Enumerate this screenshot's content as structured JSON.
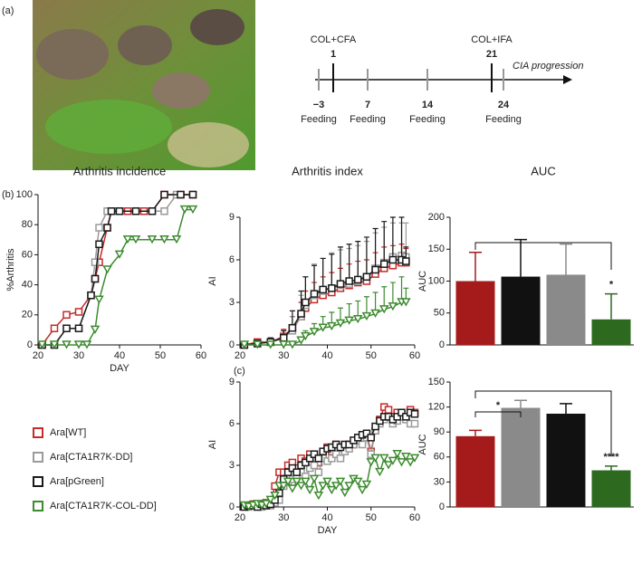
{
  "panels": [
    "(a)",
    "(b)",
    "(c)"
  ],
  "timeline": {
    "events": [
      {
        "day": "1",
        "label": "COL+CFA"
      },
      {
        "day": "21",
        "label": "COL+IFA"
      }
    ],
    "feedings": [
      {
        "day": "−3",
        "label": "Feeding"
      },
      {
        "day": "7",
        "label": "Feeding"
      },
      {
        "day": "14",
        "label": "Feeding"
      },
      {
        "day": "24",
        "label": "Feeding"
      }
    ],
    "arrow_label": "CIA progression"
  },
  "chart_data": [
    {
      "type": "line",
      "title": "Arthritis incidence",
      "x_label": "DAY",
      "y_label": "%Arthritis",
      "xlim": [
        20,
        60
      ],
      "xticks": [
        20,
        30,
        40,
        50,
        60
      ],
      "ylim": [
        0,
        100
      ],
      "yticks": [
        0,
        20,
        40,
        60,
        80,
        100
      ],
      "series": [
        {
          "name": "Ara[WT]",
          "color": "#c62a2a",
          "marker": "square",
          "x": [
            21,
            24,
            27,
            30,
            33,
            34,
            35,
            37,
            38,
            40,
            42,
            44,
            46,
            48,
            51,
            55,
            58
          ],
          "values": [
            0,
            11,
            20,
            22,
            33,
            44,
            55,
            78,
            89,
            89,
            89,
            89,
            89,
            89,
            100,
            100,
            100
          ]
        },
        {
          "name": "Ara[CTA1R7K-DD]",
          "color": "#9a9a9a",
          "marker": "square",
          "x": [
            21,
            24,
            27,
            30,
            33,
            34,
            35,
            37,
            40,
            44,
            48,
            51,
            54,
            58
          ],
          "values": [
            0,
            0,
            11,
            11,
            33,
            55,
            78,
            89,
            89,
            89,
            89,
            89,
            100,
            100
          ]
        },
        {
          "name": "Ara[pGreen]",
          "color": "#1a1a1a",
          "marker": "square",
          "x": [
            21,
            24,
            27,
            30,
            33,
            34,
            35,
            37,
            38,
            40,
            44,
            48,
            51,
            55,
            58
          ],
          "values": [
            0,
            0,
            11,
            11,
            33,
            44,
            67,
            78,
            89,
            89,
            89,
            89,
            100,
            100,
            100
          ]
        },
        {
          "name": "Ara[CTA1R7K-COL-DD]",
          "color": "#3d8b2f",
          "marker": "triangle",
          "x": [
            21,
            24,
            27,
            30,
            32,
            34,
            35,
            37,
            40,
            42,
            44,
            48,
            51,
            54,
            56,
            58
          ],
          "values": [
            0,
            0,
            0,
            0,
            0,
            10,
            30,
            50,
            60,
            70,
            70,
            70,
            70,
            70,
            90,
            90
          ]
        }
      ]
    },
    {
      "type": "line",
      "title": "Arthritis index",
      "y_label": "AI",
      "xlim": [
        20,
        60
      ],
      "xticks": [
        20,
        30,
        40,
        50,
        60
      ],
      "ylim": [
        0,
        9
      ],
      "yticks": [
        0,
        3,
        6,
        9
      ],
      "x": [
        21,
        24,
        27,
        30,
        32,
        34,
        35,
        37,
        39,
        41,
        43,
        45,
        47,
        49,
        51,
        53,
        55,
        57,
        58
      ],
      "series": [
        {
          "color": "#c62a2a",
          "marker": "square",
          "values": [
            0,
            0.2,
            0.2,
            0.6,
            1.2,
            2,
            2.6,
            3.2,
            3.5,
            3.7,
            4,
            4.2,
            4.4,
            4.5,
            5,
            5.4,
            5.6,
            5.8,
            5.8
          ],
          "errors": [
            0,
            0.2,
            0.3,
            0.5,
            0.8,
            1,
            1.2,
            1.2,
            1.3,
            1.4,
            1.4,
            1.5,
            1.5,
            1.5,
            1.5,
            1.5,
            1.4,
            1.3,
            1
          ]
        },
        {
          "color": "#9a9a9a",
          "marker": "square",
          "values": [
            0,
            0.1,
            0.2,
            0.5,
            1,
            2,
            2.8,
            3.5,
            3.8,
            4,
            4.2,
            4.3,
            4.5,
            4.8,
            5.4,
            5.8,
            6.2,
            6.3,
            6.2
          ],
          "errors": [
            0,
            0.2,
            0.3,
            0.5,
            1,
            1.5,
            2,
            2.2,
            2.3,
            2.5,
            2.5,
            2.5,
            2.5,
            2.5,
            2.5,
            2.5,
            2.4,
            2.3,
            2.4
          ]
        },
        {
          "color": "#1a1a1a",
          "marker": "square",
          "values": [
            0,
            0.1,
            0.2,
            0.5,
            1.2,
            2.2,
            3,
            3.6,
            3.9,
            4,
            4.3,
            4.5,
            4.6,
            4.8,
            5.3,
            5.7,
            6,
            6,
            5.9
          ],
          "errors": [
            0,
            0.2,
            0.3,
            0.5,
            1.2,
            1.6,
            1.8,
            2,
            2.2,
            2.4,
            2.6,
            2.6,
            2.7,
            2.8,
            2.9,
            3,
            3,
            3,
            1
          ]
        },
        {
          "color": "#3d8b2f",
          "marker": "triangle",
          "values": [
            0,
            0,
            0,
            0,
            0,
            0.3,
            0.6,
            0.9,
            1.2,
            1.3,
            1.5,
            1.7,
            1.8,
            2,
            2.2,
            2.5,
            2.7,
            3,
            3
          ],
          "errors": [
            0,
            0,
            0,
            0,
            0,
            0.2,
            0.4,
            0.6,
            0.8,
            1,
            1.1,
            1.2,
            1.3,
            1.4,
            1.5,
            1.6,
            1.7,
            1.8,
            1
          ]
        }
      ]
    },
    {
      "type": "bar",
      "title": "AUC",
      "y_label": "AUC",
      "ylim": [
        0,
        200
      ],
      "yticks": [
        0,
        50,
        100,
        150,
        200
      ],
      "categories": [
        null,
        null,
        null,
        null
      ],
      "values": [
        100,
        107,
        110,
        40
      ],
      "errors": [
        45,
        58,
        48,
        40
      ],
      "colors": [
        "#a51b1b",
        "#111111",
        "#8a8a8a",
        "#2d6a1f"
      ],
      "annotations": [
        "*"
      ]
    },
    {
      "type": "line",
      "x_label": "DAY",
      "y_label": "AI",
      "xlim": [
        20,
        60
      ],
      "xticks": [
        20,
        30,
        40,
        50,
        60
      ],
      "ylim": [
        0,
        9
      ],
      "yticks": [
        0,
        3,
        6,
        9
      ],
      "x": [
        21,
        22,
        23,
        24,
        25,
        26,
        27,
        28,
        29,
        30,
        31,
        32,
        33,
        34,
        35,
        36,
        37,
        38,
        39,
        40,
        41,
        42,
        43,
        44,
        45,
        46,
        47,
        48,
        49,
        50,
        51,
        52,
        53,
        54,
        55,
        56,
        57,
        58,
        59,
        60
      ],
      "series": [
        {
          "color": "#c62a2a",
          "marker": "square",
          "values": [
            0.1,
            0.1,
            0.2,
            0.2,
            0.1,
            0.3,
            0.2,
            1.5,
            2.5,
            2.5,
            3,
            3.2,
            2.8,
            3.5,
            3.3,
            3.8,
            3.5,
            3.2,
            3.8,
            4.3,
            4,
            4.5,
            3.8,
            4.2,
            4.5,
            4.5,
            5,
            4.8,
            5.2,
            4,
            5.5,
            6.3,
            7.2,
            7,
            6.5,
            6.8,
            6.5,
            6.5,
            7,
            6.8
          ]
        },
        {
          "color": "#9a9a9a",
          "marker": "square",
          "values": [
            0.1,
            0,
            0.1,
            0.1,
            0,
            0.1,
            0.1,
            0.3,
            0.5,
            1.5,
            1.8,
            2,
            2.2,
            2.5,
            2.2,
            2.8,
            3,
            2.5,
            3.5,
            3.3,
            3.5,
            3.8,
            3.5,
            4,
            4.2,
            4.5,
            4.8,
            4.5,
            5,
            3.8,
            5.5,
            6,
            6.3,
            6.5,
            6,
            6.2,
            6.5,
            6.3,
            6,
            6
          ]
        },
        {
          "color": "#1a1a1a",
          "marker": "square",
          "values": [
            0,
            0.1,
            0.1,
            0,
            0.2,
            0.1,
            0.2,
            0.5,
            1,
            2,
            2.5,
            2.8,
            2.5,
            3,
            3.2,
            3.5,
            3.8,
            3.5,
            4,
            4.2,
            4.3,
            4.5,
            4.3,
            4.5,
            4.5,
            4.8,
            5,
            5.2,
            5.3,
            5,
            5.8,
            6.2,
            6.5,
            6.5,
            6.3,
            6.5,
            6.8,
            6.5,
            6.8,
            6.7
          ]
        },
        {
          "color": "#3d8b2f",
          "marker": "triangle",
          "values": [
            0.1,
            0,
            0.1,
            0.2,
            0.1,
            0.2,
            0.5,
            0.8,
            1.5,
            1.5,
            1.8,
            1.3,
            1.8,
            1.5,
            1.8,
            1.2,
            2,
            0.8,
            1.5,
            1.8,
            1.2,
            1.5,
            1.8,
            1,
            1.5,
            2,
            1.8,
            1.2,
            1.6,
            3.2,
            3.5,
            2.5,
            3.5,
            3,
            3.3,
            3.8,
            3.2,
            3.6,
            3.2,
            3.5
          ]
        }
      ]
    },
    {
      "type": "bar",
      "y_label": "AUC",
      "ylim": [
        0,
        150
      ],
      "yticks": [
        0,
        30,
        60,
        90,
        120,
        150
      ],
      "categories": [
        null,
        null,
        null,
        null
      ],
      "values": [
        85,
        119,
        112,
        44
      ],
      "errors": [
        7,
        9,
        12,
        5
      ],
      "colors": [
        "#a51b1b",
        "#8a8a8a",
        "#111111",
        "#2d6a1f"
      ],
      "annotations": [
        "*",
        "****"
      ]
    }
  ]
}
